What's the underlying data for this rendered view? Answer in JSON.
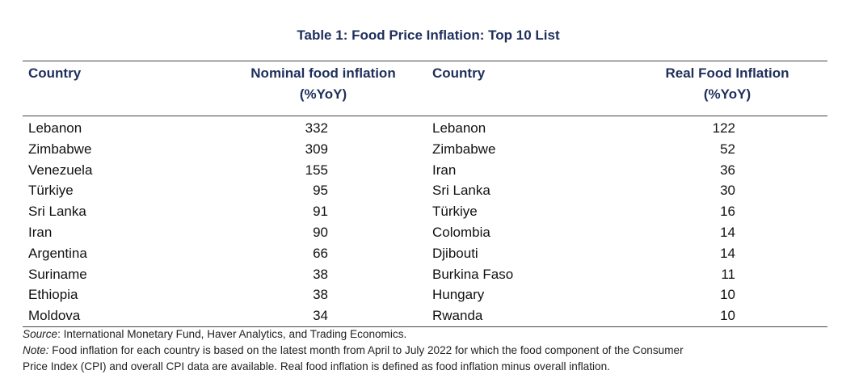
{
  "title": "Table 1: Food Price Inflation: Top 10 List",
  "headers": {
    "country_left": "Country",
    "nominal_line1": "Nominal food inflation",
    "nominal_line2": "(%YoY)",
    "country_right": "Country",
    "real_line1": "Real Food Inflation",
    "real_line2": "(%YoY)"
  },
  "rows": [
    {
      "country_nominal": "Lebanon",
      "nominal": "332",
      "country_real": "Lebanon",
      "real": "122"
    },
    {
      "country_nominal": "Zimbabwe",
      "nominal": "309",
      "country_real": "Zimbabwe",
      "real": "52"
    },
    {
      "country_nominal": "Venezuela",
      "nominal": "155",
      "country_real": "Iran",
      "real": "36"
    },
    {
      "country_nominal": "Türkiye",
      "nominal": "95",
      "country_real": "Sri Lanka",
      "real": "30"
    },
    {
      "country_nominal": "Sri Lanka",
      "nominal": "91",
      "country_real": "Türkiye",
      "real": "16"
    },
    {
      "country_nominal": "Iran",
      "nominal": "90",
      "country_real": "Colombia",
      "real": "14"
    },
    {
      "country_nominal": "Argentina",
      "nominal": "66",
      "country_real": "Djibouti",
      "real": "14"
    },
    {
      "country_nominal": "Suriname",
      "nominal": "38",
      "country_real": "Burkina Faso",
      "real": "11"
    },
    {
      "country_nominal": "Ethiopia",
      "nominal": "38",
      "country_real": "Hungary",
      "real": "10"
    },
    {
      "country_nominal": "Moldova",
      "nominal": "34",
      "country_real": "Rwanda",
      "real": "10"
    }
  ],
  "source_label": "Source",
  "source_text": ": International Monetary Fund, Haver Analytics, and Trading Economics.",
  "note_label": "Note:",
  "note_line1": " Food inflation for each country is based on the latest month from April to July 2022 for which the food component of the Consumer",
  "note_line2": "Price Index (CPI) and overall CPI data are available. Real food inflation is defined as food inflation minus overall inflation.",
  "colors": {
    "header_navy": "#1f2f5c",
    "rule": "#444444",
    "text": "#111111"
  }
}
